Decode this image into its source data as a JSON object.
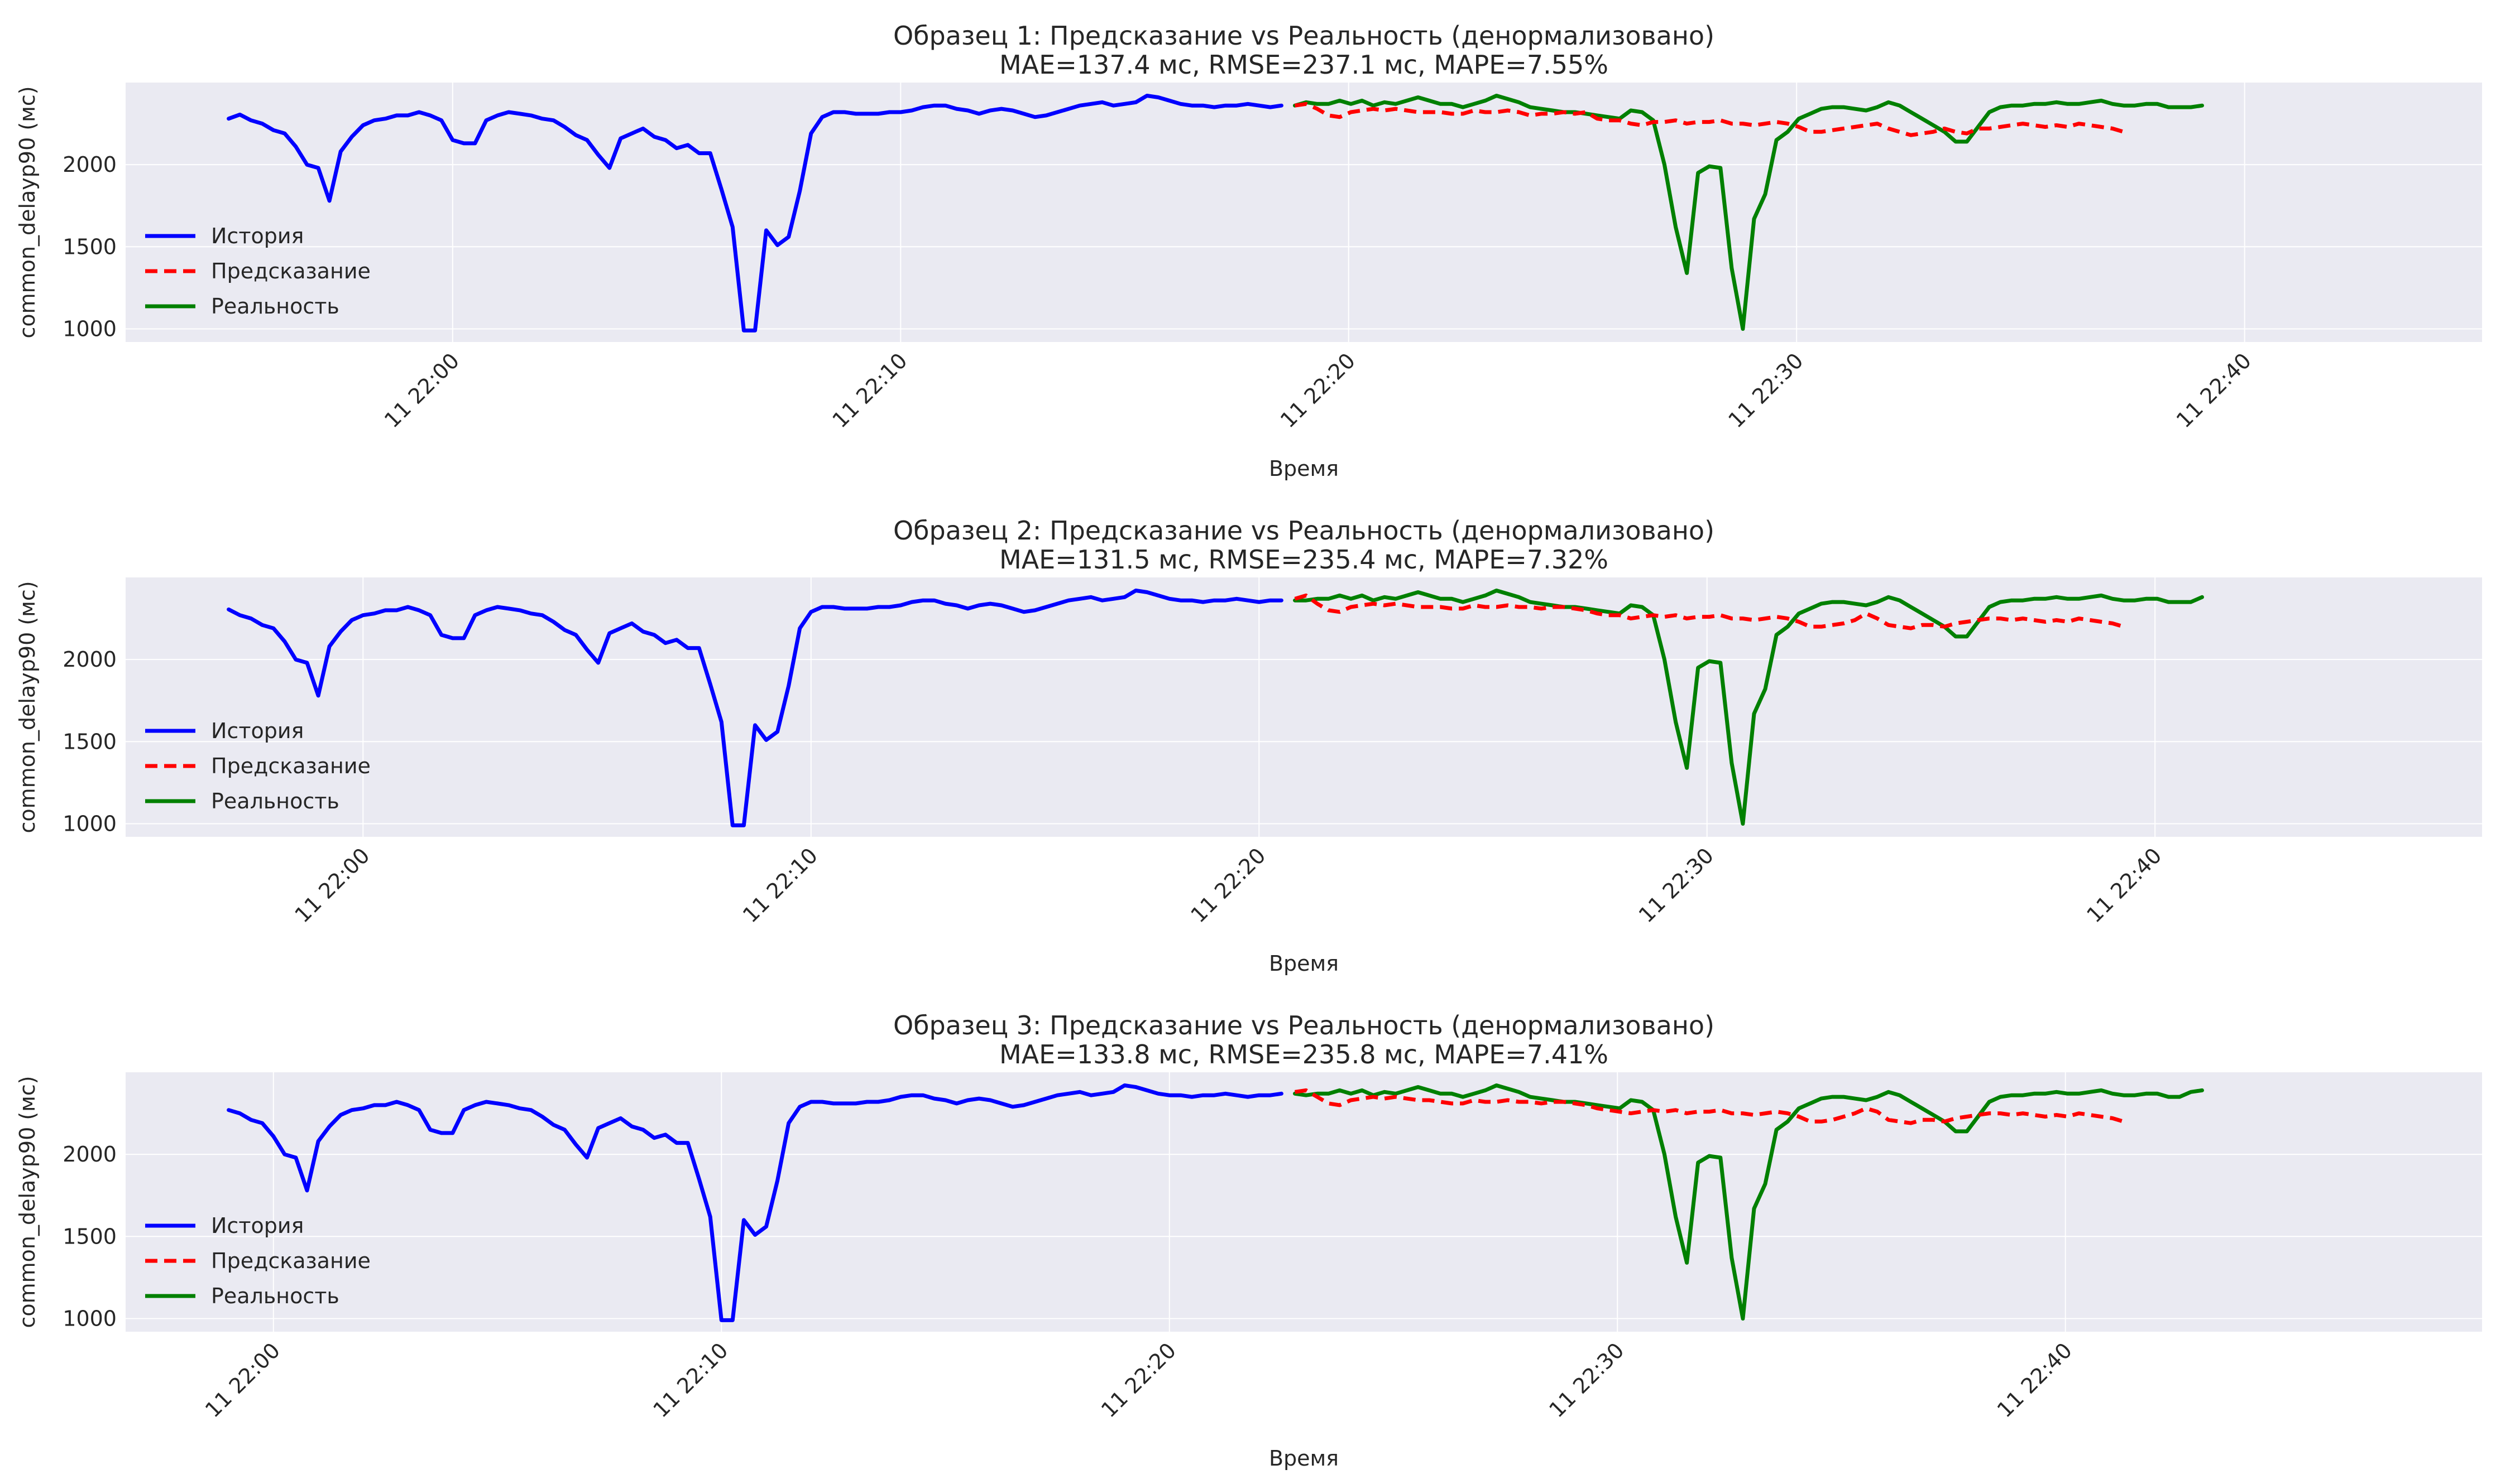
{
  "chart_data": [
    {
      "type": "line",
      "title": "Образец 1: Предсказание vs Реальность (денормализовано)",
      "subtitle": "MAE=137.4 мс, RMSE=237.1 мс, MAPE=7.55%",
      "xlabel": "Время",
      "ylabel": "common_delayp90 (мс)",
      "x_tick_labels": [
        "11 22:00",
        "11 22:10",
        "11 22:20",
        "11 22:30",
        "11 22:40"
      ],
      "x_tick_minutes": [
        0,
        10,
        20,
        30,
        40
      ],
      "xlim_minutes": [
        -7.3,
        45.3
      ],
      "y_ticks": [
        1000,
        1500,
        2000
      ],
      "ylim": [
        920,
        2500
      ],
      "history_start_minute": -5.0,
      "actual_start_minute": 18.8,
      "grid": true,
      "legend_position": "left",
      "series": [
        {
          "name": "История",
          "color": "#0000ff",
          "dash": "solid",
          "values": [
            2280,
            2305,
            2270,
            2250,
            2210,
            2190,
            2110,
            2000,
            1980,
            1780,
            2080,
            2170,
            2240,
            2270,
            2280,
            2300,
            2300,
            2320,
            2300,
            2270,
            2150,
            2130,
            2130,
            2270,
            2300,
            2320,
            2310,
            2300,
            2280,
            2270,
            2230,
            2180,
            2150,
            2060,
            1980,
            2160,
            2190,
            2220,
            2170,
            2150,
            2100,
            2120,
            2070,
            2070,
            1850,
            1620,
            990,
            990,
            1600,
            1510,
            1560,
            1840,
            2190,
            2290,
            2320,
            2320,
            2310,
            2310,
            2310,
            2320,
            2320,
            2330,
            2350,
            2360,
            2360,
            2340,
            2330,
            2310,
            2330,
            2340,
            2330,
            2310,
            2290,
            2300,
            2320,
            2340,
            2360,
            2370,
            2380,
            2360,
            2370,
            2380,
            2420,
            2410,
            2390,
            2370,
            2360,
            2360,
            2350,
            2360,
            2360,
            2370,
            2360,
            2350,
            2360
          ]
        },
        {
          "name": "Предсказание",
          "color": "#ff0000",
          "dash": "dashed",
          "values": [
            2360,
            2370,
            2340,
            2300,
            2290,
            2320,
            2330,
            2340,
            2330,
            2340,
            2330,
            2320,
            2320,
            2320,
            2310,
            2310,
            2330,
            2320,
            2320,
            2330,
            2320,
            2300,
            2310,
            2310,
            2320,
            2310,
            2320,
            2280,
            2270,
            2270,
            2250,
            2240,
            2260,
            2260,
            2270,
            2250,
            2260,
            2260,
            2270,
            2250,
            2250,
            2240,
            2250,
            2260,
            2250,
            2230,
            2200,
            2200,
            2210,
            2220,
            2230,
            2240,
            2250,
            2220,
            2200,
            2180,
            2190,
            2200,
            2220,
            2200,
            2190,
            2220,
            2220,
            2230,
            2240,
            2250,
            2240,
            2230,
            2240,
            2230,
            2250,
            2240,
            2230,
            2220,
            2200
          ]
        },
        {
          "name": "Реальность",
          "color": "#008000",
          "dash": "solid",
          "values": [
            2360,
            2380,
            2370,
            2370,
            2390,
            2370,
            2390,
            2360,
            2380,
            2370,
            2390,
            2410,
            2390,
            2370,
            2370,
            2350,
            2370,
            2390,
            2420,
            2400,
            2380,
            2350,
            2340,
            2330,
            2320,
            2320,
            2310,
            2300,
            2290,
            2280,
            2330,
            2320,
            2270,
            2000,
            1620,
            1340,
            1950,
            1990,
            1980,
            1370,
            1000,
            1670,
            1820,
            2150,
            2200,
            2280,
            2310,
            2340,
            2350,
            2350,
            2340,
            2330,
            2350,
            2380,
            2360,
            2320,
            2280,
            2240,
            2200,
            2140,
            2140,
            2230,
            2320,
            2350,
            2360,
            2360,
            2370,
            2370,
            2380,
            2370,
            2370,
            2380,
            2390,
            2370,
            2360,
            2360,
            2370,
            2370,
            2350,
            2350,
            2350,
            2360
          ]
        }
      ]
    },
    {
      "type": "line",
      "title": "Образец 2: Предсказание vs Реальность (денормализовано)",
      "subtitle": "MAE=131.5 мс, RMSE=235.4 мс, MAPE=7.32%",
      "xlabel": "Время",
      "ylabel": "common_delayp90 (мс)",
      "x_tick_labels": [
        "11 22:00",
        "11 22:10",
        "11 22:20",
        "11 22:30",
        "11 22:40"
      ],
      "x_tick_minutes": [
        0,
        10,
        20,
        30,
        40
      ],
      "xlim_minutes": [
        -5.3,
        47.3
      ],
      "y_ticks": [
        1000,
        1500,
        2000
      ],
      "ylim": [
        920,
        2500
      ],
      "history_start_minute": -3.0,
      "actual_start_minute": 20.8,
      "grid": true,
      "legend_position": "left",
      "series": [
        {
          "name": "История",
          "color": "#0000ff",
          "dash": "solid",
          "values": [
            2305,
            2270,
            2250,
            2210,
            2190,
            2110,
            2000,
            1980,
            1780,
            2080,
            2170,
            2240,
            2270,
            2280,
            2300,
            2300,
            2320,
            2300,
            2270,
            2150,
            2130,
            2130,
            2270,
            2300,
            2320,
            2310,
            2300,
            2280,
            2270,
            2230,
            2180,
            2150,
            2060,
            1980,
            2160,
            2190,
            2220,
            2170,
            2150,
            2100,
            2120,
            2070,
            2070,
            1850,
            1620,
            990,
            990,
            1600,
            1510,
            1560,
            1840,
            2190,
            2290,
            2320,
            2320,
            2310,
            2310,
            2310,
            2320,
            2320,
            2330,
            2350,
            2360,
            2360,
            2340,
            2330,
            2310,
            2330,
            2340,
            2330,
            2310,
            2290,
            2300,
            2320,
            2340,
            2360,
            2370,
            2380,
            2360,
            2370,
            2380,
            2420,
            2410,
            2390,
            2370,
            2360,
            2360,
            2350,
            2360,
            2360,
            2370,
            2360,
            2350,
            2360,
            2360
          ]
        },
        {
          "name": "Предсказание",
          "color": "#ff0000",
          "dash": "dashed",
          "values": [
            2370,
            2390,
            2340,
            2300,
            2290,
            2320,
            2330,
            2340,
            2330,
            2340,
            2330,
            2320,
            2320,
            2320,
            2310,
            2310,
            2330,
            2320,
            2320,
            2330,
            2320,
            2320,
            2310,
            2320,
            2320,
            2310,
            2300,
            2280,
            2270,
            2270,
            2250,
            2260,
            2270,
            2260,
            2270,
            2250,
            2260,
            2260,
            2270,
            2250,
            2250,
            2240,
            2250,
            2260,
            2250,
            2230,
            2200,
            2200,
            2210,
            2220,
            2240,
            2280,
            2250,
            2210,
            2200,
            2190,
            2210,
            2210,
            2200,
            2220,
            2230,
            2240,
            2250,
            2250,
            2240,
            2250,
            2240,
            2230,
            2240,
            2230,
            2250,
            2240,
            2230,
            2220,
            2200
          ]
        },
        {
          "name": "Реальность",
          "color": "#008000",
          "dash": "solid",
          "values": [
            2360,
            2360,
            2370,
            2370,
            2390,
            2370,
            2390,
            2360,
            2380,
            2370,
            2390,
            2410,
            2390,
            2370,
            2370,
            2350,
            2370,
            2390,
            2420,
            2400,
            2380,
            2350,
            2340,
            2330,
            2320,
            2320,
            2310,
            2300,
            2290,
            2280,
            2330,
            2320,
            2270,
            2000,
            1620,
            1340,
            1950,
            1990,
            1980,
            1370,
            1000,
            1670,
            1820,
            2150,
            2200,
            2280,
            2310,
            2340,
            2350,
            2350,
            2340,
            2330,
            2350,
            2380,
            2360,
            2320,
            2280,
            2240,
            2200,
            2140,
            2140,
            2230,
            2320,
            2350,
            2360,
            2360,
            2370,
            2370,
            2380,
            2370,
            2370,
            2380,
            2390,
            2370,
            2360,
            2360,
            2370,
            2370,
            2350,
            2350,
            2350,
            2380
          ]
        }
      ]
    },
    {
      "type": "line",
      "title": "Образец 3: Предсказание vs Реальность (денормализовано)",
      "subtitle": "MAE=133.8 мс, RMSE=235.8 мс, MAPE=7.41%",
      "xlabel": "Время",
      "ylabel": "common_delayp90 (мс)",
      "x_tick_labels": [
        "11 22:00",
        "11 22:10",
        "11 22:20",
        "11 22:30",
        "11 22:40"
      ],
      "x_tick_minutes": [
        0,
        10,
        20,
        30,
        40
      ],
      "xlim_minutes": [
        -3.3,
        49.3
      ],
      "y_ticks": [
        1000,
        1500,
        2000
      ],
      "ylim": [
        920,
        2500
      ],
      "history_start_minute": -1.0,
      "actual_start_minute": 22.8,
      "grid": true,
      "legend_position": "left",
      "series": [
        {
          "name": "История",
          "color": "#0000ff",
          "dash": "solid",
          "values": [
            2270,
            2250,
            2210,
            2190,
            2110,
            2000,
            1980,
            1780,
            2080,
            2170,
            2240,
            2270,
            2280,
            2300,
            2300,
            2320,
            2300,
            2270,
            2150,
            2130,
            2130,
            2270,
            2300,
            2320,
            2310,
            2300,
            2280,
            2270,
            2230,
            2180,
            2150,
            2060,
            1980,
            2160,
            2190,
            2220,
            2170,
            2150,
            2100,
            2120,
            2070,
            2070,
            1850,
            1620,
            990,
            990,
            1600,
            1510,
            1560,
            1840,
            2190,
            2290,
            2320,
            2320,
            2310,
            2310,
            2310,
            2320,
            2320,
            2330,
            2350,
            2360,
            2360,
            2340,
            2330,
            2310,
            2330,
            2340,
            2330,
            2310,
            2290,
            2300,
            2320,
            2340,
            2360,
            2370,
            2380,
            2360,
            2370,
            2380,
            2420,
            2410,
            2390,
            2370,
            2360,
            2360,
            2350,
            2360,
            2360,
            2370,
            2360,
            2350,
            2360,
            2360,
            2370
          ]
        },
        {
          "name": "Предсказание",
          "color": "#ff0000",
          "dash": "dashed",
          "values": [
            2380,
            2390,
            2350,
            2310,
            2300,
            2330,
            2340,
            2350,
            2340,
            2350,
            2340,
            2330,
            2330,
            2320,
            2310,
            2310,
            2330,
            2320,
            2320,
            2330,
            2320,
            2320,
            2310,
            2320,
            2320,
            2310,
            2300,
            2280,
            2270,
            2260,
            2250,
            2260,
            2270,
            2260,
            2270,
            2250,
            2260,
            2260,
            2270,
            2250,
            2250,
            2240,
            2250,
            2260,
            2250,
            2230,
            2200,
            2200,
            2210,
            2230,
            2250,
            2280,
            2260,
            2210,
            2200,
            2190,
            2210,
            2210,
            2200,
            2220,
            2230,
            2240,
            2250,
            2250,
            2240,
            2250,
            2240,
            2230,
            2240,
            2230,
            2250,
            2240,
            2230,
            2220,
            2200
          ]
        },
        {
          "name": "Реальность",
          "color": "#008000",
          "dash": "solid",
          "values": [
            2370,
            2360,
            2370,
            2370,
            2390,
            2370,
            2390,
            2360,
            2380,
            2370,
            2390,
            2410,
            2390,
            2370,
            2370,
            2350,
            2370,
            2390,
            2420,
            2400,
            2380,
            2350,
            2340,
            2330,
            2320,
            2320,
            2310,
            2300,
            2290,
            2280,
            2330,
            2320,
            2270,
            2000,
            1620,
            1340,
            1950,
            1990,
            1980,
            1370,
            1000,
            1670,
            1820,
            2150,
            2200,
            2280,
            2310,
            2340,
            2350,
            2350,
            2340,
            2330,
            2350,
            2380,
            2360,
            2320,
            2280,
            2240,
            2200,
            2140,
            2140,
            2230,
            2320,
            2350,
            2360,
            2360,
            2370,
            2370,
            2380,
            2370,
            2370,
            2380,
            2390,
            2370,
            2360,
            2360,
            2370,
            2370,
            2350,
            2350,
            2380,
            2390
          ]
        }
      ]
    }
  ]
}
